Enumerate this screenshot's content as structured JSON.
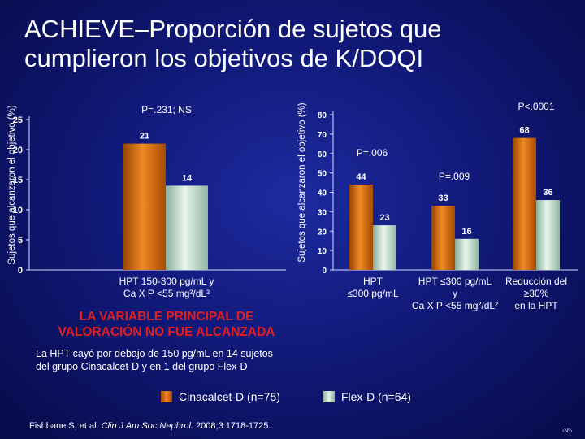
{
  "title": {
    "line1": "ACHIEVE–Proporción de sujetos que",
    "line2": "cumplieron los objetivos de K/DOQI"
  },
  "colors": {
    "cinacalcet": "#e07a18",
    "flexd": "#c9e2d4",
    "p_value_text": "#ffffff"
  },
  "chart_data": [
    {
      "type": "bar",
      "ylabel": "Sujetos que alcanzaron el objetivo (%)",
      "ylim": [
        0,
        25
      ],
      "yticks": [
        "0",
        "5",
        "10",
        "15",
        "20",
        "25"
      ],
      "categories": [
        [
          "HPT 150-300 pg/mL y",
          "Ca X P <55 mg²/dL²"
        ]
      ],
      "series": [
        {
          "name": "Cinacalcet-D (n=75)",
          "values": [
            21
          ],
          "labels": [
            "21"
          ]
        },
        {
          "name": "Flex-D (n=64)",
          "values": [
            14
          ],
          "labels": [
            "14"
          ]
        }
      ],
      "annotations": [
        "P=.231; NS"
      ]
    },
    {
      "type": "bar",
      "ylabel": "Sujetos que alcanzaron el objetivo (%)",
      "ylim": [
        0,
        80
      ],
      "yticks": [
        "0",
        "10",
        "20",
        "30",
        "40",
        "50",
        "60",
        "70",
        "80"
      ],
      "categories": [
        [
          "HPT",
          "≤300 pg/mL"
        ],
        [
          "HPT ≤300 pg/mL",
          "y",
          "Ca X P <55 mg²/dL²"
        ],
        [
          "Reducción del",
          "≥30%",
          "en la HPT"
        ]
      ],
      "series": [
        {
          "name": "Cinacalcet-D (n=75)",
          "values": [
            44,
            33,
            68
          ],
          "labels": [
            "44",
            "33",
            "68"
          ]
        },
        {
          "name": "Flex-D (n=64)",
          "values": [
            23,
            16,
            36
          ],
          "labels": [
            "23",
            "16",
            "36"
          ]
        }
      ],
      "annotations": [
        "P=.006",
        "P=.009",
        "P<.0001"
      ]
    }
  ],
  "notes": {
    "primary_line1": "LA VARIABLE PRINCIPAL DE",
    "primary_line2": "VALORACIÓN NO FUE ALCANZADA",
    "footnote": "La HPT cayó por debajo de 150 pg/mL en 14 sujetos del grupo Cinacalcet-D y en 1 del grupo Flex-D"
  },
  "legend": {
    "cinacalcet": "Cinacalcet-D (n=75)",
    "flexd": "Flex-D (n=64)"
  },
  "reference": {
    "authors": "Fishbane S, et al. ",
    "journal": "Clin J Am Soc Nephrol.",
    "details": " 2008;3:1718-1725."
  },
  "slide_number": "‹Nº›"
}
